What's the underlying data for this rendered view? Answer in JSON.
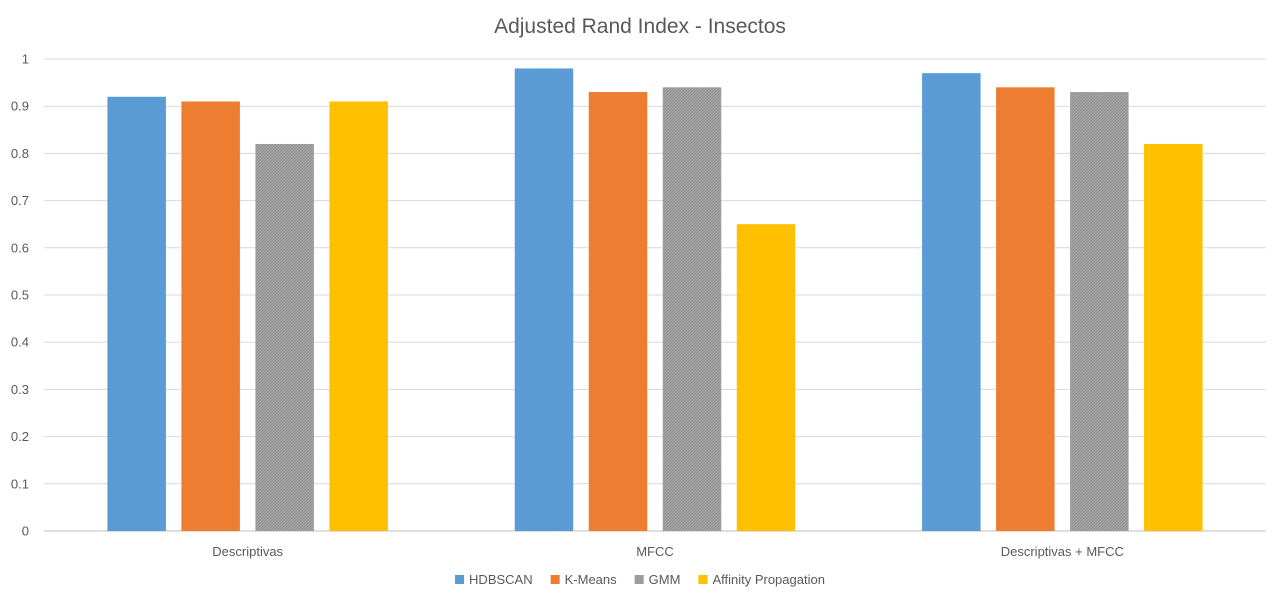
{
  "chart_data": {
    "type": "bar",
    "title": "Adjusted Rand Index - Insectos",
    "xlabel": "",
    "ylabel": "",
    "categories": [
      "Descriptivas",
      "MFCC",
      "Descriptivas + MFCC"
    ],
    "series": [
      {
        "name": "HDBSCAN",
        "color": "#5b9bd5",
        "pattern": "solid",
        "values": [
          0.92,
          0.98,
          0.97
        ]
      },
      {
        "name": "K-Means",
        "color": "#ed7d31",
        "pattern": "solid",
        "values": [
          0.91,
          0.93,
          0.94
        ]
      },
      {
        "name": "GMM",
        "color": "#a5a5a5",
        "pattern": "hatched",
        "values": [
          0.82,
          0.94,
          0.93
        ]
      },
      {
        "name": "Affinity Propagation",
        "color": "#ffc000",
        "pattern": "solid",
        "values": [
          0.91,
          0.65,
          0.82
        ]
      }
    ],
    "ylim": [
      0,
      1
    ],
    "yticks": [
      "0",
      "0.1",
      "0.2",
      "0.3",
      "0.4",
      "0.5",
      "0.6",
      "0.7",
      "0.8",
      "0.9",
      "1"
    ],
    "grid": true,
    "legend_position": "bottom"
  }
}
